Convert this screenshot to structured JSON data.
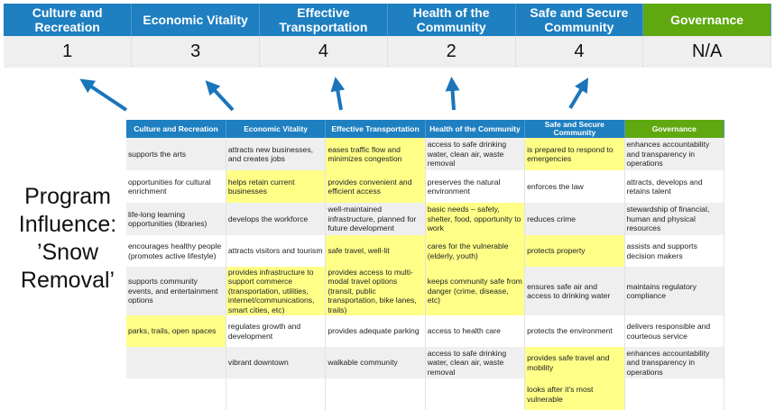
{
  "top": {
    "headers": [
      "Culture and Recreation",
      "Economic Vitality",
      "Effective Transportation",
      "Health of the Community",
      "Safe and Secure Community",
      "Governance"
    ],
    "values": [
      "1",
      "3",
      "4",
      "2",
      "4",
      "N/A"
    ]
  },
  "label": "Program Influence: ’Snow Removal’",
  "colors": {
    "header_blue": "#1e7fc1",
    "governance_green": "#5fa80f",
    "highlight": "#ffff88",
    "arrow": "#1b75bb"
  },
  "table": {
    "headers": [
      "Culture and Recreation",
      "Economic Vitality",
      "Effective Transportation",
      "Health of the Community",
      "Safe and Secure Community",
      "Governance"
    ],
    "rows": [
      [
        {
          "t": "supports the arts"
        },
        {
          "t": "attracts new businesses, and creates jobs"
        },
        {
          "t": "eases traffic flow and minimizes congestion",
          "h": true
        },
        {
          "t": "access to safe drinking water, clean air, waste removal"
        },
        {
          "t": "is prepared to respond to emergencies",
          "h": true
        },
        {
          "t": "enhances accountability and transparency in operations"
        }
      ],
      [
        {
          "t": "opportunities for cultural enrichment"
        },
        {
          "t": "helps retain current businesses",
          "h": true
        },
        {
          "t": "provides convenient and efficient access",
          "h": true
        },
        {
          "t": "preserves the natural environment"
        },
        {
          "t": "enforces the law"
        },
        {
          "t": "attracts, develops and retains talent"
        }
      ],
      [
        {
          "t": "life-long learning opportunities (libraries)"
        },
        {
          "t": "develops the workforce"
        },
        {
          "t": "well-maintained infrastructure, planned for future development"
        },
        {
          "t": "basic needs – safety, shelter, food, opportunity to work",
          "h": true
        },
        {
          "t": "reduces crime"
        },
        {
          "t": "stewardship of financial, human and physical resources"
        }
      ],
      [
        {
          "t": "encourages healthy people (promotes active lifestyle)"
        },
        {
          "t": "attracts visitors and tourism"
        },
        {
          "t": "safe travel, well-lit",
          "h": true
        },
        {
          "t": "cares for the vulnerable (elderly, youth)",
          "h": true
        },
        {
          "t": "protects property",
          "h": true
        },
        {
          "t": "assists and supports decision makers"
        }
      ],
      [
        {
          "t": "supports community events, and entertainment options"
        },
        {
          "t": "provides infrastructure to support commerce (transportation, utilities, internet/communications, smart cities, etc)",
          "h": true
        },
        {
          "t": "provides access to multi-modal travel options (transit, public transportation, bike lanes, trails)",
          "h": true
        },
        {
          "t": "keeps community safe from danger (crime, disease, etc)",
          "h": true
        },
        {
          "t": "ensures safe air and access to drinking water"
        },
        {
          "t": "maintains regulatory compliance"
        }
      ],
      [
        {
          "t": "parks, trails, open spaces",
          "h": true
        },
        {
          "t": "regulates growth and development"
        },
        {
          "t": "provides adequate parking"
        },
        {
          "t": "access to health care"
        },
        {
          "t": "protects the environment"
        },
        {
          "t": "delivers responsible and courteous service"
        }
      ],
      [
        {
          "t": ""
        },
        {
          "t": "vibrant downtown"
        },
        {
          "t": "walkable community"
        },
        {
          "t": "access to safe drinking water, clean air, waste removal"
        },
        {
          "t": "provides safe travel and mobility",
          "h": true
        },
        {
          "t": "enhances accountability and transparency in operations"
        }
      ],
      [
        {
          "t": ""
        },
        {
          "t": ""
        },
        {
          "t": ""
        },
        {
          "t": ""
        },
        {
          "t": "looks after it's most vulnerable",
          "h": true
        },
        {
          "t": ""
        }
      ]
    ]
  }
}
